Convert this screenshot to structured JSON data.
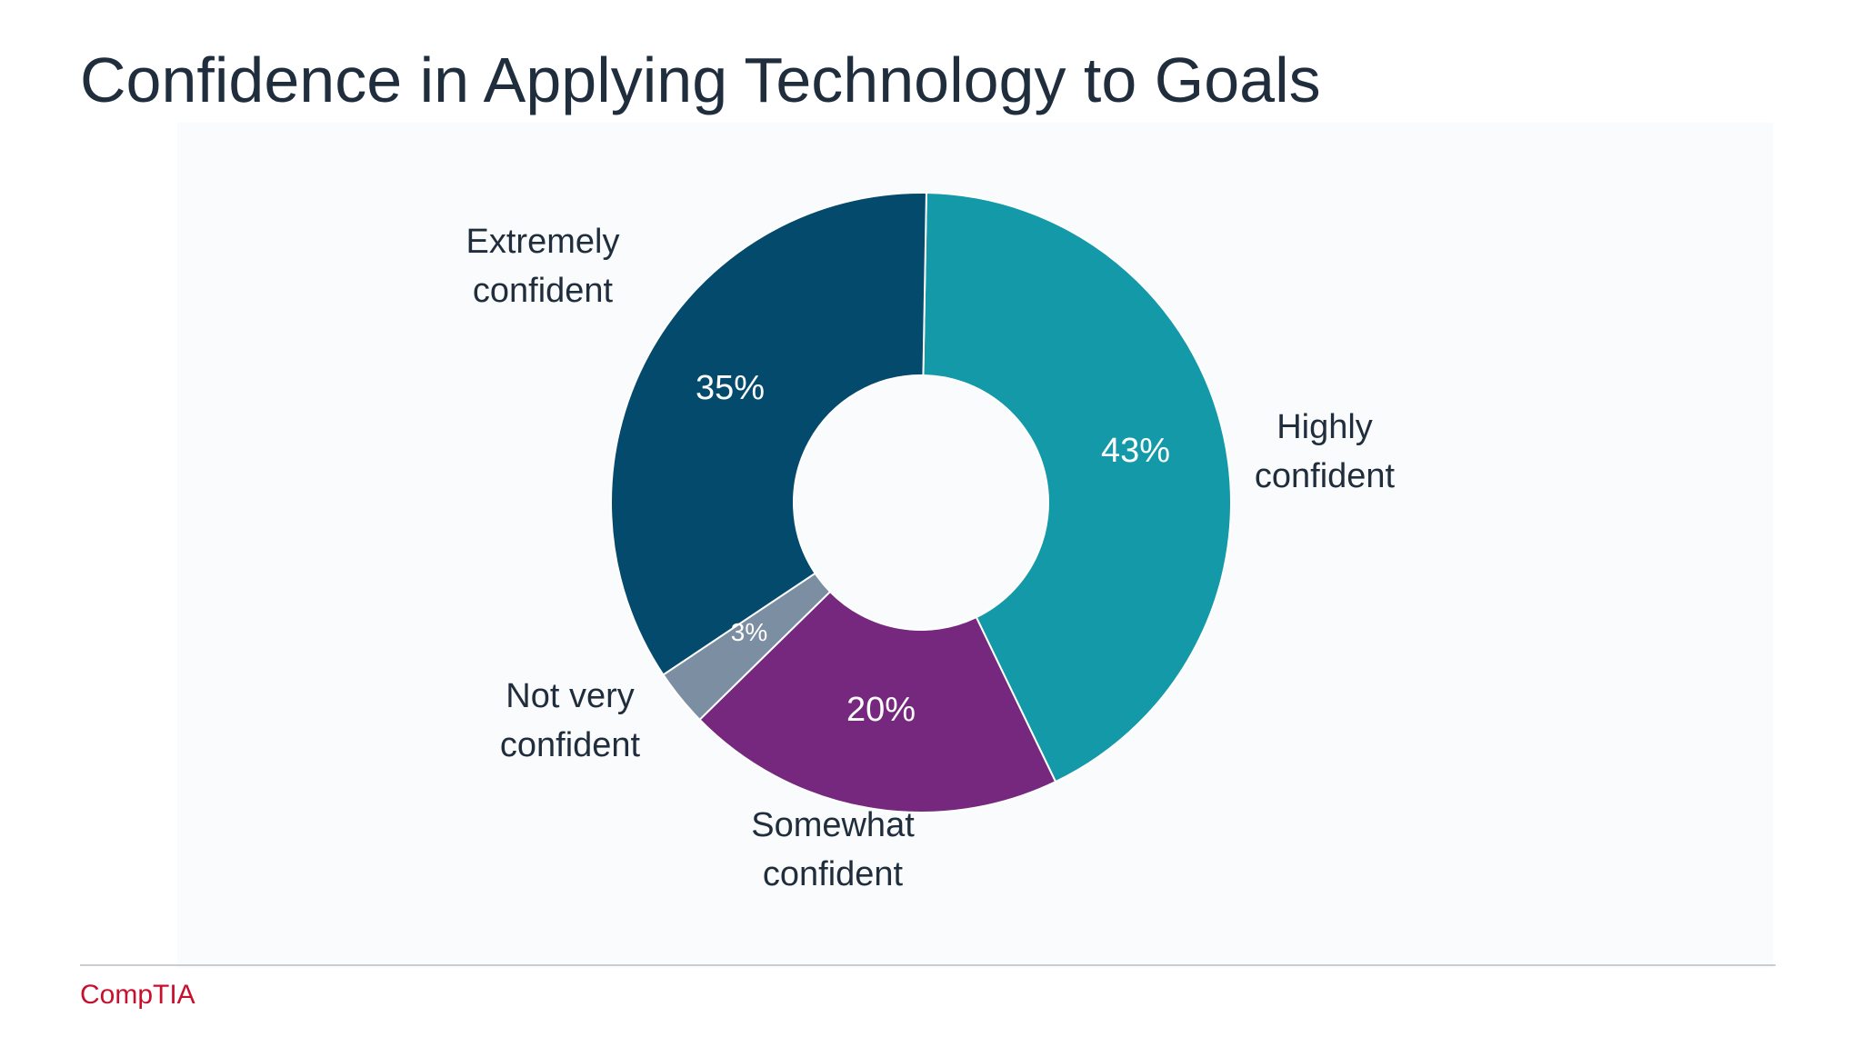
{
  "slide": {
    "title": "Confidence in Applying Technology to Goals",
    "logo_text": "CompTIA"
  },
  "chart_data": {
    "type": "pie",
    "variant": "donut",
    "title": "Confidence in Applying Technology to Goals",
    "slices": [
      {
        "label": "Highly confident",
        "value": 43,
        "value_label": "43%",
        "color": "#1399a8"
      },
      {
        "label": "Somewhat confident",
        "value": 20,
        "value_label": "20%",
        "color": "#76287f"
      },
      {
        "label": "Not very confident",
        "value": 3,
        "value_label": "3%",
        "color": "#7b8ea2"
      },
      {
        "label": "Extremely confident",
        "value": 35,
        "value_label": "35%",
        "color": "#034a6c"
      }
    ],
    "start_angle_deg": 1,
    "direction": "clockwise",
    "legend": "none",
    "labels": "outside category labels, inside value labels"
  },
  "colors": {
    "title_text": "#1f2d3d",
    "label_text": "#1f2d3d",
    "value_text": "#ffffff",
    "brand_red": "#c8102e",
    "rule": "#c9ccd1"
  }
}
